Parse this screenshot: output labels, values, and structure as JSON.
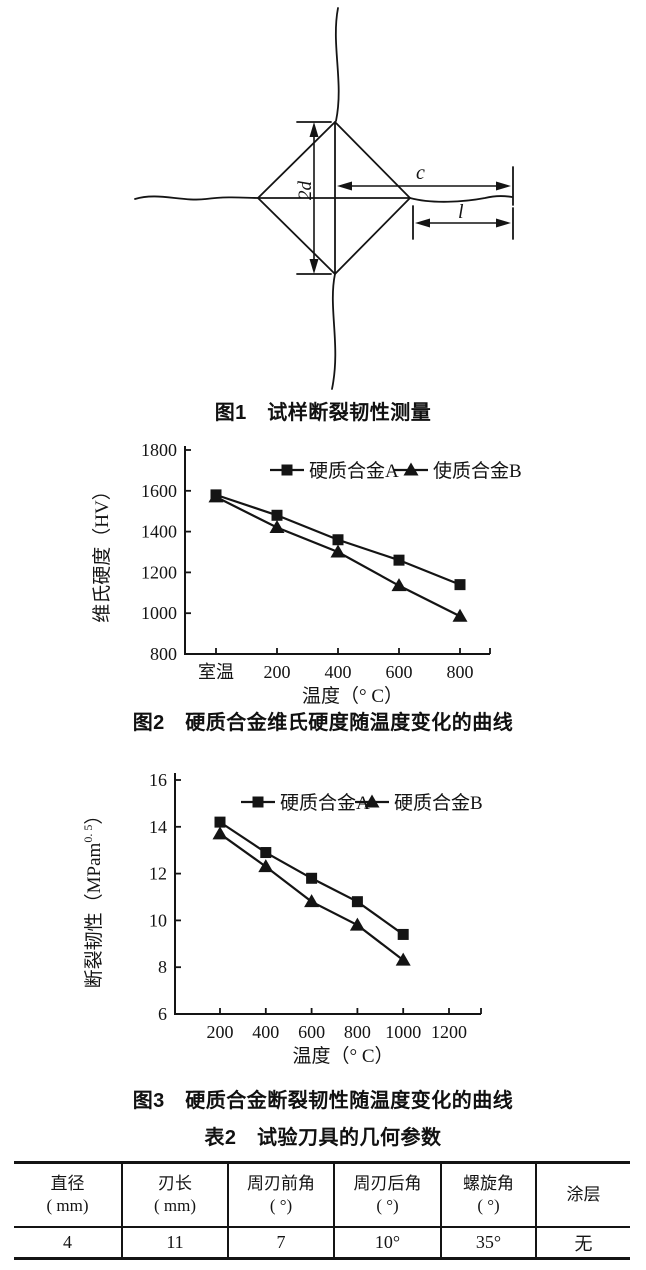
{
  "page": {
    "background": "#ffffff",
    "ink": "#141414"
  },
  "figure1": {
    "caption": "图1　试样断裂韧性测量",
    "labels": {
      "indent_diagonal": "2d",
      "crack_half_length": "c",
      "crack_tip_length": "l"
    }
  },
  "figure2": {
    "caption": "图2　硬质合金维氏硬度随温度变化的曲线"
  },
  "figure3": {
    "caption": "图3　硬质合金断裂韧性随温度变化的曲线"
  },
  "chart_data": [
    {
      "id": "vickers-hardness-vs-temperature",
      "type": "line",
      "categories": [
        "室温",
        "200",
        "400",
        "600",
        "800"
      ],
      "series": [
        {
          "name": "硬质合金A",
          "marker": "square",
          "values": [
            1580,
            1480,
            1360,
            1260,
            1140
          ]
        },
        {
          "name": "使质合金B",
          "marker": "triangle",
          "values": [
            1570,
            1420,
            1300,
            1135,
            985
          ]
        }
      ],
      "xlabel": "温度（° C）",
      "ylabel": "维氏硬度（HV）",
      "ylim": [
        800,
        1800
      ],
      "yticks": [
        800,
        1000,
        1200,
        1400,
        1600,
        1800
      ],
      "grid": false,
      "legend_position": "top-inside"
    },
    {
      "id": "fracture-toughness-vs-temperature",
      "type": "line",
      "x": [
        200,
        400,
        600,
        800,
        1000
      ],
      "xticks": [
        200,
        400,
        600,
        800,
        1000,
        1200
      ],
      "xlim": [
        0,
        1340
      ],
      "series": [
        {
          "name": "硬质合金A",
          "marker": "square",
          "values": [
            14.2,
            12.9,
            11.8,
            10.8,
            9.4
          ]
        },
        {
          "name": "硬质合金B",
          "marker": "triangle",
          "values": [
            13.7,
            12.3,
            10.8,
            9.8,
            8.3
          ]
        }
      ],
      "xlabel": "温度（° C）",
      "ylabel": "断裂韧性（MPam0.5）",
      "ylabel_parts": [
        "断裂韧性（MPam",
        "0. 5",
        "）"
      ],
      "ylim": [
        6,
        16
      ],
      "yticks": [
        6,
        8,
        10,
        12,
        14,
        16
      ],
      "grid": false,
      "legend_position": "top-inside"
    }
  ],
  "table": {
    "caption": "表2　试验刀具的几何参数",
    "headers": [
      {
        "line1": "直径",
        "line2": "( mm)"
      },
      {
        "line1": "刃长",
        "line2": "( mm)"
      },
      {
        "line1": "周刃前角",
        "line2": "( °)"
      },
      {
        "line1": "周刃后角",
        "line2": "( °)"
      },
      {
        "line1": "螺旋角",
        "line2": "( °)"
      },
      {
        "line1": "涂层",
        "line2": ""
      }
    ],
    "rows": [
      [
        "4",
        "11",
        "7",
        "10°",
        "35°",
        "无"
      ]
    ]
  }
}
